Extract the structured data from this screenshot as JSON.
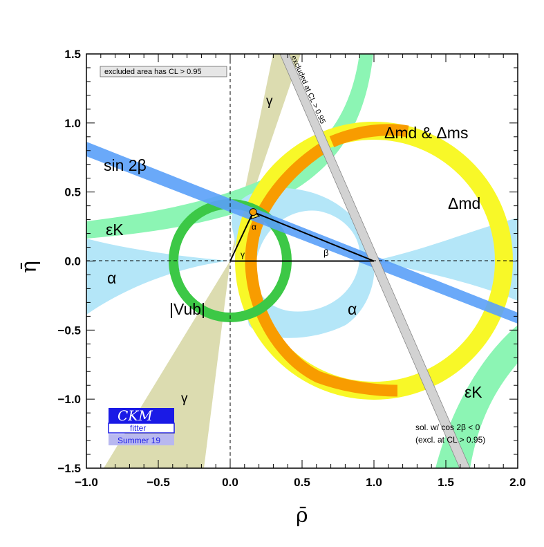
{
  "chart_data": {
    "type": "scatter",
    "xlabel": "ρ̄",
    "ylabel": "η̄",
    "xlim": [
      -1.0,
      2.0
    ],
    "ylim": [
      -1.5,
      1.5
    ],
    "x_ticks": [
      "−1.0",
      "−0.5",
      "0.0",
      "0.5",
      "1.0",
      "1.5",
      "2.0"
    ],
    "y_ticks": [
      "−1.5",
      "−1.0",
      "−0.5",
      "0.0",
      "0.5",
      "1.0",
      "1.5"
    ],
    "x_tick_values": [
      -1.0,
      -0.5,
      0.0,
      0.5,
      1.0,
      1.5,
      2.0
    ],
    "y_tick_values": [
      -1.5,
      -1.0,
      -0.5,
      0.0,
      0.5,
      1.0,
      1.5
    ],
    "grid": false,
    "dashed_axes_at_zero": true,
    "apex": {
      "rho": 0.16,
      "eta": 0.355
    },
    "triangle": [
      [
        0.0,
        0.0
      ],
      [
        1.0,
        0.0
      ],
      [
        0.16,
        0.355
      ]
    ],
    "constraint_labels": {
      "sin2beta": "sin 2β",
      "epsK_left": "εK",
      "epsK_right": "εK",
      "alpha_left": "α",
      "alpha_right": "α",
      "gamma_top": "γ",
      "gamma_bottom": "γ",
      "vub": "|Vub|",
      "dmd": "Δmd",
      "dmd_dms": "Δmd & Δms",
      "tri_alpha": "α",
      "tri_beta": "β",
      "tri_gamma": "γ"
    },
    "annotations": {
      "excluded_box": "excluded area has CL > 0.95",
      "excluded_band": "excluded at CL > 0.95",
      "sol_note_1": "sol. w/ cos 2β < 0",
      "sol_note_2": "(excl. at CL > 0.95)"
    },
    "colors": {
      "gamma": "#dcdcb0",
      "epsK": "#8cf5b4",
      "alpha": "#b4e6f8",
      "dmd": "#f8f828",
      "dms": "#f89c00",
      "vub": "#3cc846",
      "sin2b": "#5aa0f8",
      "cos2b": "#d2d2d2"
    }
  },
  "logo": {
    "text": "CKM",
    "sub": "fitter",
    "season": "Summer 19"
  }
}
